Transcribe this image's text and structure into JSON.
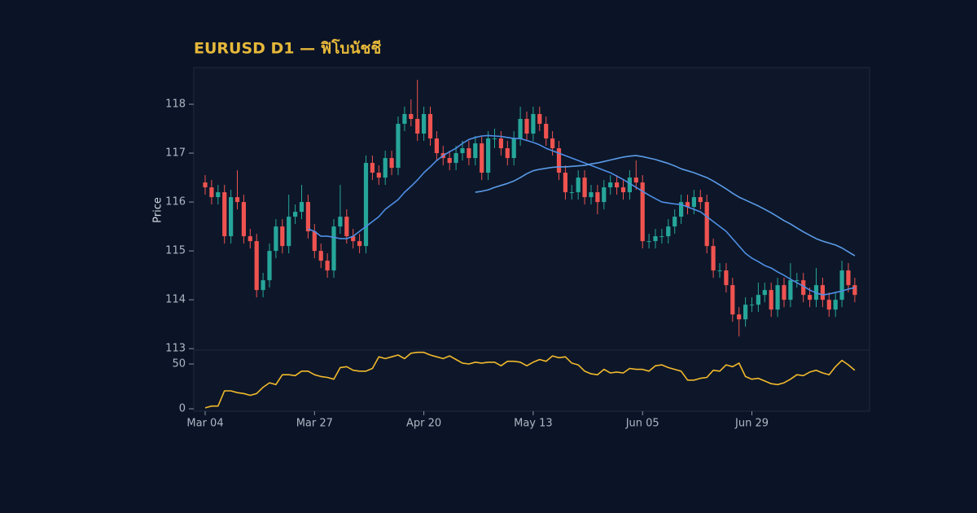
{
  "chart_data": [
    {
      "type": "candlestick",
      "title": "EURUSD D1 — ฟิโบนัชชี",
      "ylabel": "Price",
      "categories": [
        "Mar 04",
        null,
        null,
        null,
        null,
        null,
        null,
        null,
        null,
        null,
        null,
        null,
        null,
        null,
        null,
        null,
        null,
        "Mar 27",
        null,
        null,
        null,
        null,
        null,
        null,
        null,
        null,
        null,
        null,
        null,
        null,
        null,
        null,
        null,
        null,
        "Apr 20",
        null,
        null,
        null,
        null,
        null,
        null,
        null,
        null,
        null,
        null,
        null,
        null,
        null,
        null,
        null,
        null,
        "May 13",
        null,
        null,
        null,
        null,
        null,
        null,
        null,
        null,
        null,
        null,
        null,
        null,
        null,
        null,
        null,
        null,
        "Jun 05",
        null,
        null,
        null,
        null,
        null,
        null,
        null,
        null,
        null,
        null,
        null,
        null,
        null,
        null,
        null,
        null,
        "Jun 29",
        null,
        null,
        null,
        null,
        null,
        null,
        null,
        null,
        null,
        null,
        null,
        null,
        null,
        null,
        null,
        null
      ],
      "open": [
        116.4,
        116.3,
        116.1,
        116.2,
        115.3,
        116.1,
        116.0,
        115.3,
        115.2,
        114.2,
        114.4,
        115.0,
        115.5,
        115.1,
        115.7,
        115.8,
        116.0,
        115.4,
        115.0,
        114.8,
        114.6,
        115.5,
        115.7,
        115.3,
        115.2,
        115.1,
        116.8,
        116.6,
        116.5,
        116.9,
        116.7,
        117.6,
        117.8,
        117.7,
        117.4,
        117.8,
        117.3,
        117.0,
        116.9,
        116.8,
        117.0,
        117.1,
        116.9,
        117.2,
        116.6,
        117.3,
        117.3,
        117.1,
        116.9,
        117.3,
        117.7,
        117.4,
        117.8,
        117.6,
        117.3,
        117.1,
        116.6,
        116.2,
        116.2,
        116.5,
        116.1,
        116.2,
        116.0,
        116.3,
        116.4,
        116.3,
        116.2,
        116.5,
        116.4,
        115.2,
        115.2,
        115.3,
        115.3,
        115.5,
        115.7,
        116.0,
        115.9,
        116.1,
        116.0,
        115.1,
        114.6,
        114.6,
        114.3,
        113.7,
        113.6,
        113.9,
        113.9,
        114.1,
        114.2,
        113.8,
        114.3,
        114.0,
        114.4,
        114.4,
        114.1,
        114.0,
        114.3,
        114.0,
        113.8,
        114.0,
        114.6,
        114.3
      ],
      "high": [
        116.55,
        116.45,
        116.35,
        116.35,
        116.25,
        116.65,
        116.15,
        115.45,
        115.35,
        114.55,
        115.15,
        115.65,
        115.65,
        116.15,
        115.95,
        116.35,
        116.15,
        115.55,
        115.15,
        114.95,
        115.65,
        116.35,
        115.85,
        115.45,
        115.35,
        116.95,
        116.95,
        116.75,
        117.05,
        117.05,
        117.75,
        117.95,
        118.1,
        118.5,
        117.95,
        117.95,
        117.45,
        117.15,
        117.05,
        117.15,
        117.25,
        117.25,
        117.35,
        117.35,
        117.45,
        117.5,
        117.45,
        117.25,
        117.45,
        117.95,
        117.85,
        117.95,
        117.95,
        117.75,
        117.45,
        117.25,
        116.75,
        116.35,
        116.65,
        116.65,
        116.35,
        116.35,
        116.45,
        116.55,
        116.55,
        116.45,
        116.65,
        116.85,
        116.55,
        115.35,
        115.45,
        115.45,
        115.65,
        115.85,
        116.15,
        116.15,
        116.25,
        116.25,
        116.15,
        115.25,
        114.75,
        114.75,
        114.45,
        113.85,
        114.05,
        114.05,
        114.35,
        114.35,
        114.35,
        114.45,
        114.45,
        114.75,
        114.55,
        114.55,
        114.25,
        114.65,
        114.45,
        114.15,
        114.15,
        114.8,
        114.75,
        114.45
      ],
      "low": [
        116.15,
        115.95,
        115.95,
        115.15,
        115.15,
        115.85,
        115.15,
        115.05,
        114.05,
        114.05,
        114.25,
        114.85,
        114.95,
        114.95,
        115.55,
        115.65,
        115.25,
        114.85,
        114.65,
        114.45,
        114.45,
        115.35,
        115.15,
        115.05,
        114.95,
        114.95,
        116.45,
        116.35,
        116.35,
        116.55,
        116.55,
        117.45,
        117.55,
        117.25,
        117.25,
        117.15,
        116.85,
        116.75,
        116.65,
        116.65,
        116.85,
        116.75,
        116.75,
        116.45,
        116.45,
        117.1,
        116.95,
        116.75,
        116.75,
        117.15,
        117.25,
        117.25,
        117.45,
        117.15,
        116.95,
        116.45,
        116.05,
        116.05,
        116.05,
        115.95,
        115.95,
        115.75,
        115.85,
        116.15,
        116.15,
        116.05,
        116.05,
        116.25,
        115.05,
        115.05,
        115.05,
        115.15,
        115.15,
        115.35,
        115.55,
        115.75,
        115.75,
        115.85,
        114.95,
        114.45,
        114.45,
        114.15,
        113.55,
        113.25,
        113.45,
        113.75,
        113.75,
        113.95,
        113.65,
        113.65,
        113.85,
        113.85,
        114.25,
        113.95,
        113.85,
        113.85,
        113.85,
        113.65,
        113.65,
        113.85,
        114.15,
        113.95
      ],
      "close": [
        116.3,
        116.1,
        116.2,
        115.3,
        116.1,
        116.0,
        115.3,
        115.2,
        114.2,
        114.4,
        115.0,
        115.5,
        115.1,
        115.7,
        115.8,
        116.0,
        115.4,
        115.0,
        114.8,
        114.6,
        115.5,
        115.7,
        115.3,
        115.2,
        115.1,
        116.8,
        116.6,
        116.5,
        116.9,
        116.7,
        117.6,
        117.8,
        117.7,
        117.4,
        117.8,
        117.3,
        117.0,
        116.9,
        116.8,
        117.0,
        117.1,
        116.9,
        117.2,
        116.6,
        117.3,
        117.3,
        117.1,
        116.9,
        117.3,
        117.7,
        117.4,
        117.8,
        117.6,
        117.3,
        117.1,
        116.6,
        116.2,
        116.2,
        116.5,
        116.1,
        116.2,
        116.0,
        116.3,
        116.4,
        116.3,
        116.2,
        116.5,
        116.4,
        115.2,
        115.2,
        115.3,
        115.3,
        115.5,
        115.7,
        116.0,
        115.9,
        116.1,
        116.0,
        115.1,
        114.6,
        114.6,
        114.3,
        113.7,
        113.6,
        113.9,
        113.9,
        114.1,
        114.2,
        113.8,
        114.3,
        114.0,
        114.4,
        114.4,
        114.1,
        114.0,
        114.3,
        114.0,
        113.8,
        114.0,
        114.6,
        114.3,
        114.1
      ],
      "up_color": "#26a69a",
      "down_color": "#ef5350",
      "series": [
        {
          "color": "#4f8fe6",
          "values": [
            null,
            null,
            null,
            null,
            null,
            null,
            null,
            null,
            null,
            null,
            null,
            null,
            null,
            null,
            null,
            null,
            115.45,
            115.4,
            115.3,
            115.3,
            115.28,
            115.25,
            115.25,
            115.3,
            115.4,
            115.5,
            115.6,
            115.7,
            115.85,
            115.95,
            116.05,
            116.2,
            116.32,
            116.45,
            116.6,
            116.72,
            116.85,
            116.95,
            117.03,
            117.1,
            117.2,
            117.28,
            117.32,
            117.35,
            117.36,
            117.35,
            117.34,
            117.32,
            117.3,
            117.3,
            117.26,
            117.22,
            117.17,
            117.1,
            117.05,
            117.0,
            116.95,
            116.9,
            116.85,
            116.8,
            116.75,
            116.7,
            116.65,
            116.6,
            116.53,
            116.46,
            116.38,
            116.3,
            116.22,
            116.14,
            116.07,
            116.0,
            115.98,
            115.96,
            115.95,
            115.9,
            115.85,
            115.8,
            115.7,
            115.6,
            115.5,
            115.4,
            115.25,
            115.1,
            114.95,
            114.85,
            114.78,
            114.7,
            114.65,
            114.57,
            114.5,
            114.42,
            114.35,
            114.28,
            114.2,
            114.14,
            114.1,
            114.12,
            114.15,
            114.18,
            114.22,
            114.25
          ]
        },
        {
          "color": "#5b9be8",
          "values": [
            null,
            null,
            null,
            null,
            null,
            null,
            null,
            null,
            null,
            null,
            null,
            null,
            null,
            null,
            null,
            null,
            null,
            null,
            null,
            null,
            null,
            null,
            null,
            null,
            null,
            null,
            null,
            null,
            null,
            null,
            null,
            null,
            null,
            null,
            null,
            null,
            null,
            null,
            null,
            null,
            null,
            null,
            116.2,
            116.22,
            116.25,
            116.3,
            116.34,
            116.38,
            116.43,
            116.5,
            116.58,
            116.64,
            116.67,
            116.69,
            116.71,
            116.72,
            116.72,
            116.73,
            116.74,
            116.75,
            116.78,
            116.8,
            116.83,
            116.86,
            116.89,
            116.92,
            116.94,
            116.95,
            116.93,
            116.9,
            116.87,
            116.83,
            116.79,
            116.74,
            116.68,
            116.64,
            116.6,
            116.55,
            116.5,
            116.43,
            116.35,
            116.27,
            116.18,
            116.1,
            116.04,
            115.98,
            115.92,
            115.85,
            115.78,
            115.7,
            115.62,
            115.55,
            115.47,
            115.39,
            115.32,
            115.25,
            115.2,
            115.16,
            115.12,
            115.06,
            114.98,
            114.9
          ]
        }
      ],
      "ylim": [
        112.97,
        118.75
      ],
      "yticks": [
        113,
        114,
        115,
        116,
        117,
        118
      ]
    },
    {
      "type": "line",
      "series": [
        {
          "color": "#f2b92c",
          "values": [
            1,
            3,
            3,
            20,
            20,
            18,
            17,
            15,
            17,
            24,
            29,
            27,
            38,
            38,
            37,
            42,
            42,
            38,
            36,
            35,
            33,
            46,
            47,
            43,
            42,
            42,
            45,
            58,
            56,
            58,
            60,
            56,
            62,
            63,
            63,
            60,
            58,
            56,
            59,
            55,
            51,
            50,
            52,
            51,
            52,
            52,
            48,
            53,
            53,
            52,
            48,
            52,
            55,
            53,
            59,
            57,
            58,
            51,
            49,
            42,
            39,
            38,
            44,
            40,
            41,
            40,
            45,
            44,
            44,
            42,
            48,
            49,
            46,
            44,
            42,
            32,
            32,
            34,
            35,
            43,
            42,
            49,
            47,
            51,
            36,
            33,
            34,
            31,
            28,
            27,
            29,
            33,
            38,
            37,
            41,
            43,
            40,
            38,
            47,
            54,
            49,
            43
          ]
        }
      ],
      "ylim": [
        -2.7,
        65.5
      ],
      "yticks": [
        0,
        50
      ]
    }
  ]
}
